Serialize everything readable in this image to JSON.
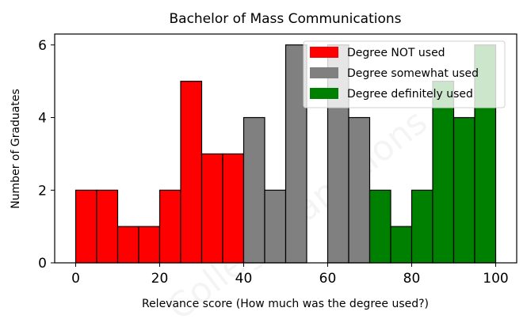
{
  "chart_data": {
    "type": "bar",
    "title": "Bachelor of Mass Communications",
    "xlabel": "Relevance score (How much was the degree used?)",
    "ylabel": "Number of Graduates",
    "xlim": [
      -5,
      105
    ],
    "ylim": [
      0,
      6.3
    ],
    "xticks": [
      0,
      20,
      40,
      60,
      80,
      100
    ],
    "yticks": [
      0,
      2,
      4,
      6
    ],
    "bin_width": 5,
    "grid": false,
    "legend_position": "top-right",
    "watermark": "CollegeTransitions",
    "series": [
      {
        "name": "Degree NOT used",
        "color": "#ff0000",
        "bins": [
          {
            "x": 0,
            "count": 2
          },
          {
            "x": 5,
            "count": 2
          },
          {
            "x": 10,
            "count": 1
          },
          {
            "x": 15,
            "count": 1
          },
          {
            "x": 20,
            "count": 2
          },
          {
            "x": 25,
            "count": 5
          },
          {
            "x": 30,
            "count": 3
          },
          {
            "x": 35,
            "count": 3
          }
        ]
      },
      {
        "name": "Degree somewhat used",
        "color": "#808080",
        "bins": [
          {
            "x": 40,
            "count": 4
          },
          {
            "x": 45,
            "count": 2
          },
          {
            "x": 50,
            "count": 6
          },
          {
            "x": 55,
            "count": 0
          },
          {
            "x": 60,
            "count": 6
          },
          {
            "x": 65,
            "count": 4
          }
        ]
      },
      {
        "name": "Degree definitely used",
        "color": "#008000",
        "bins": [
          {
            "x": 70,
            "count": 2
          },
          {
            "x": 75,
            "count": 1
          },
          {
            "x": 80,
            "count": 2
          },
          {
            "x": 85,
            "count": 5
          },
          {
            "x": 90,
            "count": 4
          },
          {
            "x": 95,
            "count": 6
          }
        ]
      }
    ]
  }
}
